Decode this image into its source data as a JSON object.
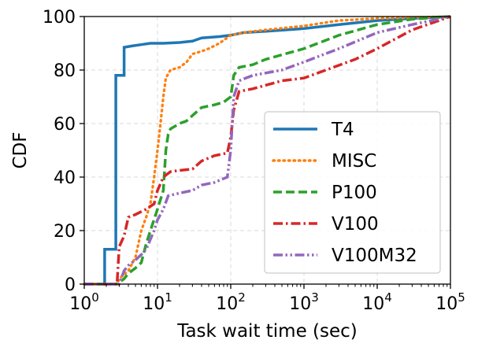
{
  "chart_data": {
    "type": "line",
    "title": "",
    "xlabel": "Task wait time (sec)",
    "ylabel": "CDF",
    "xscale": "log",
    "xlim": [
      1,
      100000
    ],
    "ylim": [
      0,
      100
    ],
    "grid": true,
    "legend_position": "right",
    "x_ticks": [
      1,
      10,
      100,
      1000,
      10000,
      100000
    ],
    "x_tick_labels": [
      {
        "base": "10",
        "exp": "0"
      },
      {
        "base": "10",
        "exp": "1"
      },
      {
        "base": "10",
        "exp": "2"
      },
      {
        "base": "10",
        "exp": "3"
      },
      {
        "base": "10",
        "exp": "4"
      },
      {
        "base": "10",
        "exp": "5"
      }
    ],
    "y_ticks": [
      0,
      20,
      40,
      60,
      80,
      100
    ],
    "y_tick_labels": [
      "0",
      "20",
      "40",
      "60",
      "80",
      "100"
    ],
    "series": [
      {
        "name": "T4",
        "color": "#1f77b4",
        "dash": "solid",
        "points": [
          [
            1,
            0
          ],
          [
            1.9,
            0
          ],
          [
            1.9,
            13
          ],
          [
            2.7,
            13
          ],
          [
            2.7,
            78
          ],
          [
            3.5,
            78
          ],
          [
            3.5,
            88.5
          ],
          [
            4.5,
            89
          ],
          [
            6,
            89.5
          ],
          [
            8,
            90
          ],
          [
            12,
            90
          ],
          [
            20,
            90.3
          ],
          [
            30,
            90.8
          ],
          [
            40,
            92
          ],
          [
            70,
            92.5
          ],
          [
            100,
            93
          ],
          [
            150,
            94
          ],
          [
            300,
            94.5
          ],
          [
            1000,
            95.5
          ],
          [
            3000,
            97
          ],
          [
            10000,
            98.5
          ],
          [
            30000,
            99.3
          ],
          [
            100000,
            100
          ]
        ]
      },
      {
        "name": "MISC",
        "color": "#ff7f0e",
        "dash": "dot",
        "points": [
          [
            1,
            0
          ],
          [
            2.8,
            0
          ],
          [
            3,
            2
          ],
          [
            4,
            5
          ],
          [
            5,
            10
          ],
          [
            6,
            20
          ],
          [
            7,
            25
          ],
          [
            8,
            30
          ],
          [
            9,
            40
          ],
          [
            10,
            50
          ],
          [
            11,
            60
          ],
          [
            12,
            70
          ],
          [
            13,
            77
          ],
          [
            15,
            80
          ],
          [
            20,
            81
          ],
          [
            25,
            83
          ],
          [
            30,
            86
          ],
          [
            40,
            87
          ],
          [
            50,
            88
          ],
          [
            70,
            90
          ],
          [
            100,
            93
          ],
          [
            150,
            94
          ],
          [
            300,
            95
          ],
          [
            1000,
            96.5
          ],
          [
            3000,
            98.5
          ],
          [
            10000,
            99.3
          ],
          [
            100000,
            100
          ]
        ]
      },
      {
        "name": "P100",
        "color": "#2ca02c",
        "dash": "dashed",
        "points": [
          [
            1,
            0
          ],
          [
            2.8,
            0
          ],
          [
            3.5,
            2
          ],
          [
            4,
            4
          ],
          [
            5,
            6
          ],
          [
            6,
            8
          ],
          [
            7,
            15
          ],
          [
            8,
            20
          ],
          [
            10,
            28
          ],
          [
            12,
            35
          ],
          [
            13,
            50
          ],
          [
            14,
            56
          ],
          [
            15,
            58
          ],
          [
            20,
            60
          ],
          [
            25,
            61
          ],
          [
            30,
            63
          ],
          [
            40,
            66
          ],
          [
            60,
            67
          ],
          [
            80,
            68
          ],
          [
            100,
            70
          ],
          [
            110,
            78
          ],
          [
            130,
            81
          ],
          [
            200,
            82
          ],
          [
            300,
            84
          ],
          [
            1000,
            88
          ],
          [
            3000,
            93
          ],
          [
            10000,
            97
          ],
          [
            30000,
            99
          ],
          [
            100000,
            100
          ]
        ]
      },
      {
        "name": "V100",
        "color": "#d62728",
        "dash": "dashdot",
        "points": [
          [
            1,
            0
          ],
          [
            2.8,
            0
          ],
          [
            3,
            14
          ],
          [
            3.5,
            18
          ],
          [
            4,
            25
          ],
          [
            5,
            26
          ],
          [
            7,
            28
          ],
          [
            9,
            30
          ],
          [
            10,
            35
          ],
          [
            12,
            40
          ],
          [
            15,
            42
          ],
          [
            20,
            42.5
          ],
          [
            30,
            43
          ],
          [
            40,
            46
          ],
          [
            60,
            48
          ],
          [
            90,
            49
          ],
          [
            100,
            55
          ],
          [
            110,
            65
          ],
          [
            130,
            72
          ],
          [
            200,
            73
          ],
          [
            500,
            76
          ],
          [
            1000,
            77
          ],
          [
            2000,
            80
          ],
          [
            5000,
            84
          ],
          [
            10000,
            88
          ],
          [
            30000,
            95
          ],
          [
            100000,
            100
          ]
        ]
      },
      {
        "name": "V100M32",
        "color": "#9467bd",
        "dash": "dashdotdot",
        "points": [
          [
            1,
            0
          ],
          [
            3,
            0
          ],
          [
            3.5,
            5
          ],
          [
            4,
            7
          ],
          [
            5,
            9
          ],
          [
            6,
            11
          ],
          [
            7,
            13
          ],
          [
            9,
            20
          ],
          [
            10,
            24
          ],
          [
            12,
            28
          ],
          [
            14,
            33
          ],
          [
            20,
            34
          ],
          [
            30,
            35
          ],
          [
            40,
            37
          ],
          [
            60,
            38
          ],
          [
            90,
            40
          ],
          [
            100,
            50
          ],
          [
            110,
            70
          ],
          [
            130,
            76
          ],
          [
            200,
            78
          ],
          [
            500,
            80
          ],
          [
            1000,
            83
          ],
          [
            3000,
            88
          ],
          [
            10000,
            94
          ],
          [
            30000,
            97
          ],
          [
            100000,
            100
          ]
        ]
      }
    ]
  }
}
